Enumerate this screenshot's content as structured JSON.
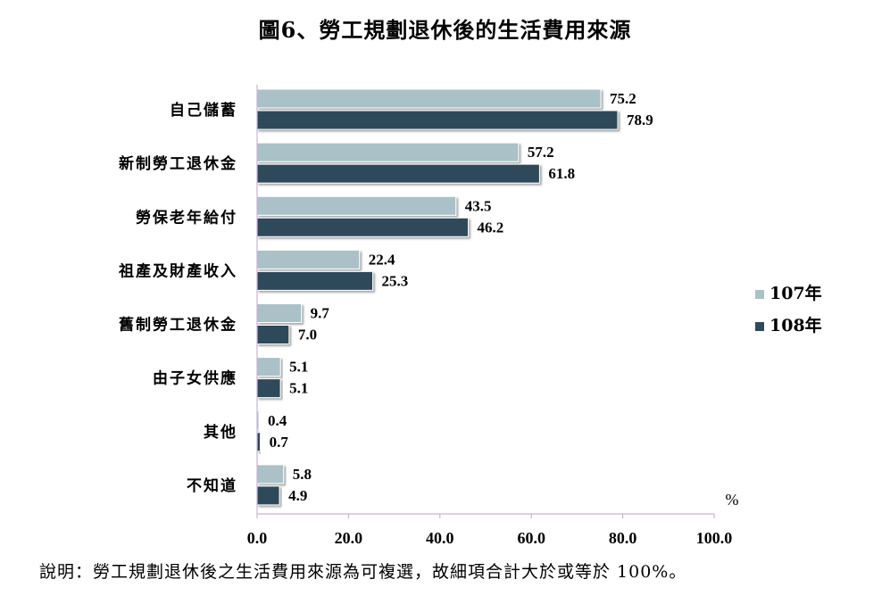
{
  "chart_data": {
    "type": "bar",
    "orientation": "horizontal",
    "title": "圖6、勞工規劃退休後的生活費用來源",
    "categories": [
      "自己儲蓄",
      "新制勞工退休金",
      "勞保老年給付",
      "祖產及財產收入",
      "舊制勞工退休金",
      "由子女供應",
      "其他",
      "不知道"
    ],
    "series": [
      {
        "name": "107年",
        "values": [
          75.2,
          57.2,
          43.5,
          22.4,
          9.7,
          5.1,
          0.4,
          5.8
        ],
        "labels": [
          "75.2",
          "57.2",
          "43.5",
          "22.4",
          "9.7",
          "5.1",
          "0.4",
          "5.8"
        ],
        "color": "#a9c1c7"
      },
      {
        "name": "108年",
        "values": [
          78.9,
          61.8,
          46.2,
          25.3,
          7.0,
          5.1,
          0.7,
          4.9
        ],
        "labels": [
          "78.9",
          "61.8",
          "46.2",
          "25.3",
          "7.0",
          "5.1",
          "0.7",
          "4.9"
        ],
        "color": "#2f4a5a"
      }
    ],
    "xlim": [
      0,
      100
    ],
    "xticks": [
      0,
      20,
      40,
      60,
      80,
      100
    ],
    "xtick_labels": [
      "0.0",
      "20.0",
      "40.0",
      "60.0",
      "80.0",
      "100.0"
    ],
    "unit": "%",
    "grid": false,
    "legend_position": "right"
  },
  "footnote": "說明：勞工規劃退休後之生活費用來源為可複選，故細項合計大於或等於 100%。"
}
